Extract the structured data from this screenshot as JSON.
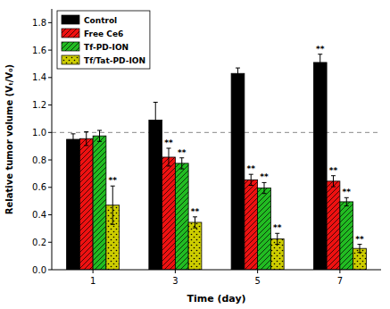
{
  "chart_data": {
    "type": "bar",
    "title": "",
    "xlabel": "Time (day)",
    "ylabel": "Relative tumor volume (Vₜ/V₀)",
    "categories": [
      "1",
      "3",
      "5",
      "7"
    ],
    "series": [
      {
        "name": "Control",
        "color": "#000000",
        "values": [
          0.95,
          1.09,
          1.43,
          1.51
        ],
        "errors": [
          0.04,
          0.13,
          0.04,
          0.06
        ]
      },
      {
        "name": "Free Ce6",
        "color": "#ee1111",
        "values": [
          0.955,
          0.82,
          0.655,
          0.645
        ],
        "errors": [
          0.05,
          0.065,
          0.04,
          0.04
        ]
      },
      {
        "name": "Tf-PD-ION",
        "color": "#22bb22",
        "values": [
          0.975,
          0.775,
          0.595,
          0.495
        ],
        "errors": [
          0.04,
          0.04,
          0.04,
          0.03
        ]
      },
      {
        "name": "Tf/Tat-PD-ION",
        "color": "#cccc00",
        "values": [
          0.47,
          0.345,
          0.225,
          0.155
        ],
        "errors": [
          0.14,
          0.04,
          0.04,
          0.03
        ]
      }
    ],
    "annotations": [
      {
        "text": "**",
        "series": "Tf/Tat-PD-ION",
        "category": "1"
      },
      {
        "text": "**",
        "series": "Free Ce6",
        "category": "3"
      },
      {
        "text": "**",
        "series": "Tf-PD-ION",
        "category": "3"
      },
      {
        "text": "**",
        "series": "Tf/Tat-PD-ION",
        "category": "3"
      },
      {
        "text": "**",
        "series": "Free Ce6",
        "category": "5"
      },
      {
        "text": "**",
        "series": "Tf-PD-ION",
        "category": "5"
      },
      {
        "text": "**",
        "series": "Tf/Tat-PD-ION",
        "category": "5"
      },
      {
        "text": "**",
        "series": "Control",
        "category": "7"
      },
      {
        "text": "**",
        "series": "Free Ce6",
        "category": "7"
      },
      {
        "text": "**",
        "series": "Tf-PD-ION",
        "category": "7"
      },
      {
        "text": "**",
        "series": "Tf/Tat-PD-ION",
        "category": "7"
      }
    ],
    "reference_lines": [
      {
        "y": 1.0,
        "line_style": "dashed"
      }
    ],
    "ylim": [
      0.0,
      1.9
    ],
    "yticks": [
      {
        "value": 0.0,
        "label": "0.0"
      },
      0.2,
      0.4,
      0.6,
      0.8,
      {
        "value": 1.0,
        "label": "1.0"
      },
      1.2,
      1.4,
      1.6,
      1.8
    ],
    "grid": false,
    "legend": "upper left"
  }
}
